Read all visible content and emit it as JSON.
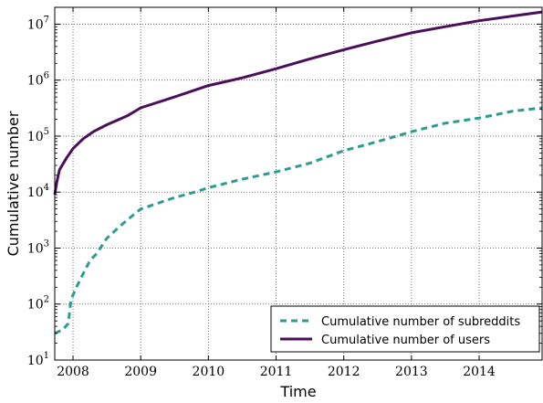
{
  "chart_data": {
    "type": "line",
    "xlabel": "Time",
    "ylabel": "Cumulative number",
    "yscale": "log",
    "xlim": [
      2007.73,
      2014.93
    ],
    "ylim": [
      10,
      20000000
    ],
    "x_ticks": [
      2008,
      2009,
      2010,
      2011,
      2012,
      2013,
      2014
    ],
    "x_tick_labels": [
      "2008",
      "2009",
      "2010",
      "2011",
      "2012",
      "2013",
      "2014"
    ],
    "y_ticks": [
      {
        "value": 10,
        "base": "10",
        "exp": "1"
      },
      {
        "value": 100,
        "base": "10",
        "exp": "2"
      },
      {
        "value": 1000,
        "base": "10",
        "exp": "3"
      },
      {
        "value": 10000,
        "base": "10",
        "exp": "4"
      },
      {
        "value": 100000,
        "base": "10",
        "exp": "5"
      },
      {
        "value": 1000000,
        "base": "10",
        "exp": "6"
      },
      {
        "value": 10000000,
        "base": "10",
        "exp": "7"
      }
    ],
    "grid": true,
    "legend_position": "lower-right",
    "series": [
      {
        "name": "Cumulative number of subreddits",
        "color": "#2a9d8f",
        "style": "dashed",
        "points": [
          [
            2007.73,
            30
          ],
          [
            2007.85,
            35
          ],
          [
            2007.93,
            45
          ],
          [
            2007.97,
            120
          ],
          [
            2008.05,
            200
          ],
          [
            2008.15,
            350
          ],
          [
            2008.25,
            600
          ],
          [
            2008.35,
            800
          ],
          [
            2008.5,
            1500
          ],
          [
            2008.7,
            2500
          ],
          [
            2008.9,
            4000
          ],
          [
            2009.0,
            5000
          ],
          [
            2009.2,
            6000
          ],
          [
            2009.5,
            8000
          ],
          [
            2009.8,
            10000
          ],
          [
            2010.0,
            12000
          ],
          [
            2010.5,
            17000
          ],
          [
            2011.0,
            23000
          ],
          [
            2011.5,
            33000
          ],
          [
            2012.0,
            55000
          ],
          [
            2012.5,
            80000
          ],
          [
            2013.0,
            120000
          ],
          [
            2013.5,
            170000
          ],
          [
            2014.0,
            210000
          ],
          [
            2014.5,
            280000
          ],
          [
            2014.93,
            320000
          ]
        ]
      },
      {
        "name": "Cumulative number of users",
        "color": "#4b0f5a",
        "style": "solid",
        "points": [
          [
            2007.73,
            9000
          ],
          [
            2007.76,
            15000
          ],
          [
            2007.8,
            25000
          ],
          [
            2007.9,
            40000
          ],
          [
            2008.0,
            60000
          ],
          [
            2008.15,
            90000
          ],
          [
            2008.3,
            120000
          ],
          [
            2008.5,
            160000
          ],
          [
            2008.8,
            230000
          ],
          [
            2009.0,
            320000
          ],
          [
            2009.5,
            500000
          ],
          [
            2010.0,
            800000
          ],
          [
            2010.5,
            1100000
          ],
          [
            2011.0,
            1600000
          ],
          [
            2011.5,
            2400000
          ],
          [
            2012.0,
            3500000
          ],
          [
            2012.5,
            5000000
          ],
          [
            2013.0,
            7000000
          ],
          [
            2013.5,
            9000000
          ],
          [
            2014.0,
            11500000
          ],
          [
            2014.5,
            14000000
          ],
          [
            2014.93,
            16500000
          ]
        ]
      }
    ]
  }
}
